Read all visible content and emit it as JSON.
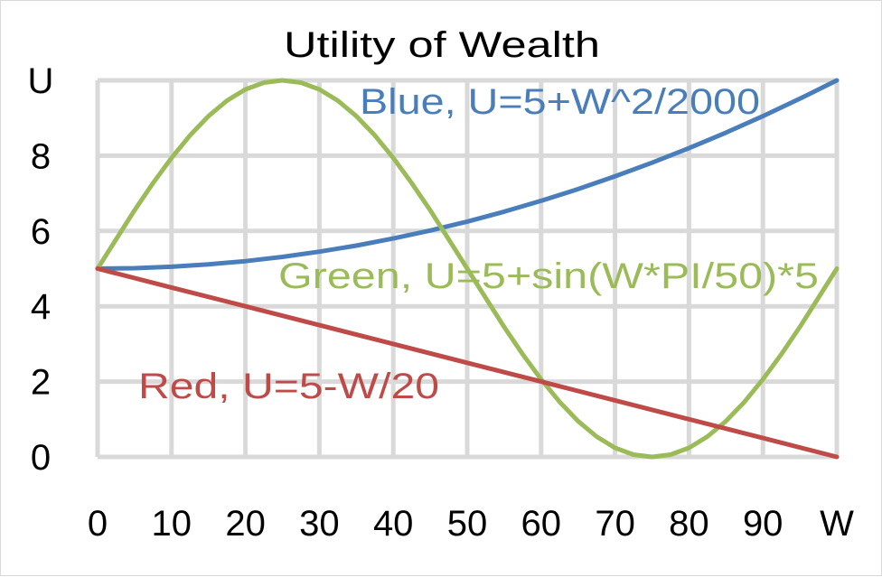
{
  "chart_data": {
    "type": "line",
    "title": "Utility of Wealth",
    "xlabel": "W",
    "ylabel": "U",
    "xlim": [
      0,
      100
    ],
    "ylim": [
      0,
      10
    ],
    "grid": true,
    "x_ticks": [
      "0",
      "10",
      "20",
      "30",
      "40",
      "50",
      "60",
      "70",
      "80",
      "90",
      "W"
    ],
    "y_ticks": [
      "0",
      "2",
      "4",
      "6",
      "8",
      "U"
    ],
    "series": [
      {
        "name": "Blue",
        "color": "#4a7ebb",
        "x": [
          0,
          5,
          10,
          15,
          20,
          25,
          30,
          35,
          40,
          45,
          50,
          55,
          60,
          65,
          70,
          75,
          80,
          85,
          90,
          95,
          100
        ],
        "values": [
          5,
          5.0125,
          5.05,
          5.1125,
          5.2,
          5.3125,
          5.45,
          5.6125,
          5.8,
          6.0125,
          6.25,
          6.5125,
          6.8,
          7.1125,
          7.45,
          7.8125,
          8.2,
          8.6125,
          9.05,
          9.5125,
          10
        ]
      },
      {
        "name": "Green",
        "color": "#9bbb59",
        "x": [
          0,
          2.5,
          5,
          7.5,
          10,
          12.5,
          15,
          17.5,
          20,
          22.5,
          25,
          27.5,
          30,
          32.5,
          35,
          37.5,
          40,
          42.5,
          45,
          47.5,
          50,
          52.5,
          55,
          57.5,
          60,
          62.5,
          65,
          67.5,
          70,
          72.5,
          75,
          77.5,
          80,
          82.5,
          85,
          87.5,
          90,
          92.5,
          95,
          97.5,
          100
        ],
        "values": [
          5,
          5.78,
          6.55,
          7.27,
          7.94,
          8.54,
          9.05,
          9.46,
          9.76,
          9.94,
          10,
          9.94,
          9.76,
          9.46,
          9.05,
          8.54,
          7.94,
          7.27,
          6.55,
          5.78,
          5,
          4.22,
          3.45,
          2.73,
          2.06,
          1.46,
          0.95,
          0.54,
          0.24,
          0.06,
          0,
          0.06,
          0.24,
          0.54,
          0.95,
          1.46,
          2.06,
          2.73,
          3.45,
          4.22,
          5
        ]
      },
      {
        "name": "Red",
        "color": "#be4b48",
        "x": [
          0,
          10,
          20,
          30,
          40,
          50,
          60,
          70,
          80,
          90,
          100
        ],
        "values": [
          5,
          4.5,
          4,
          3.5,
          3,
          2.5,
          2,
          1.5,
          1,
          0.5,
          0
        ]
      }
    ],
    "annotations": [
      {
        "series": "Blue",
        "text": "Blue, U=5+W^2/2000",
        "color": "#4a7ebb"
      },
      {
        "series": "Green",
        "text": "Green, U=5+sin(W*PI/50)*5",
        "color": "#9bbb59"
      },
      {
        "series": "Red",
        "text": "Red, U=5-W/20",
        "color": "#be4b48"
      }
    ]
  }
}
